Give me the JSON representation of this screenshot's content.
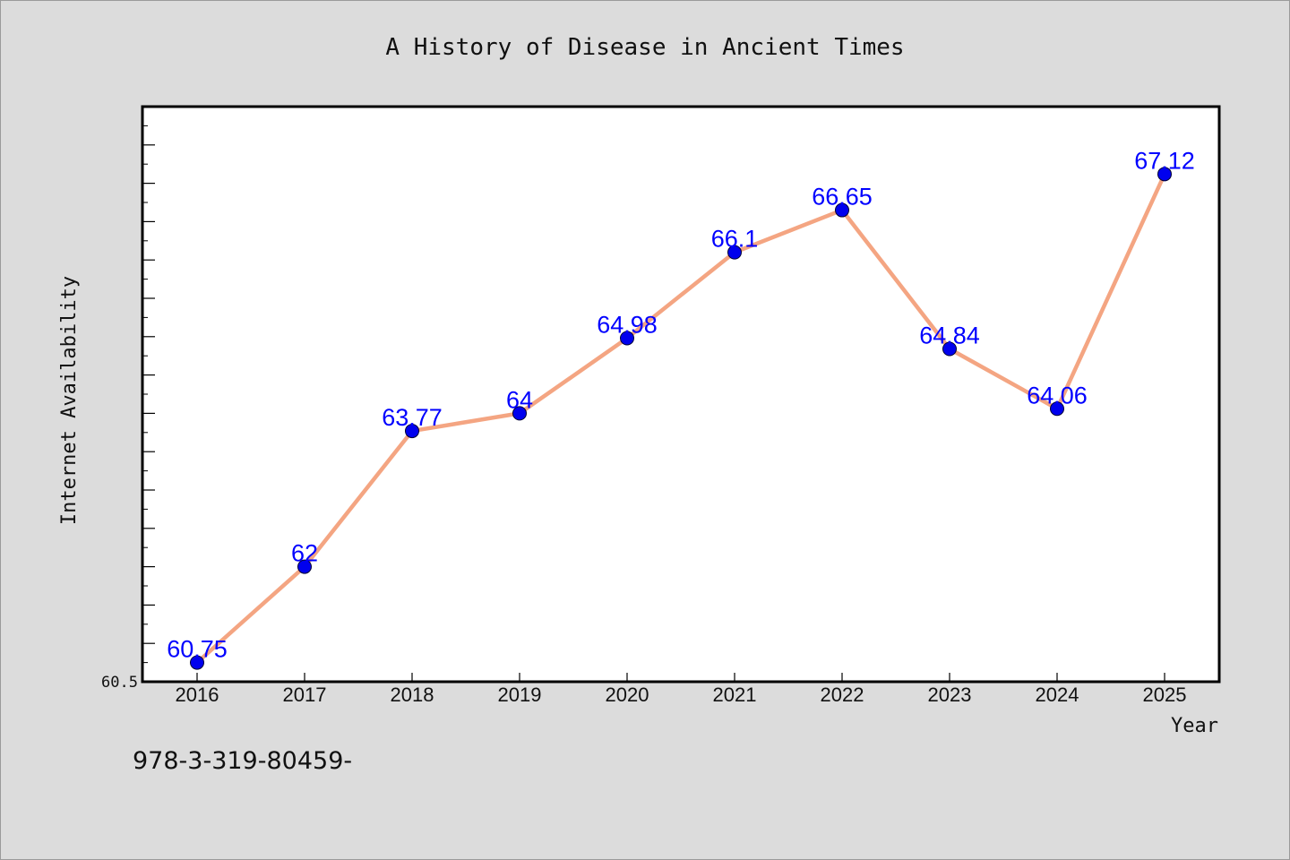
{
  "chart_data": {
    "type": "line",
    "title": "A History of Disease in Ancient Times",
    "xlabel": "Year",
    "ylabel": "Internet Availability",
    "categories": [
      "2016",
      "2017",
      "2018",
      "2019",
      "2020",
      "2021",
      "2022",
      "2023",
      "2024",
      "2025"
    ],
    "series": [
      {
        "values": [
          60.75,
          62,
          63.77,
          64,
          64.98,
          66.1,
          66.65,
          64.84,
          64.06,
          67.12
        ],
        "labels": [
          "60.75",
          "62",
          "63.77",
          "64",
          "64.98",
          "66.1",
          "66.65",
          "64.84",
          "64.06",
          "67.12"
        ],
        "line_color": "#f4a582",
        "marker_color": "#0000ee",
        "label_color": "#0000ff"
      }
    ],
    "y_tick_label": "60.5",
    "ylim": [
      60.5,
      68.0
    ],
    "grid": false,
    "legend": "none"
  },
  "footer": {
    "code": "978-3-319-80459-"
  },
  "colors": {
    "background": "#dcdcdc",
    "plot_background": "#ffffff",
    "axis": "#000000"
  }
}
